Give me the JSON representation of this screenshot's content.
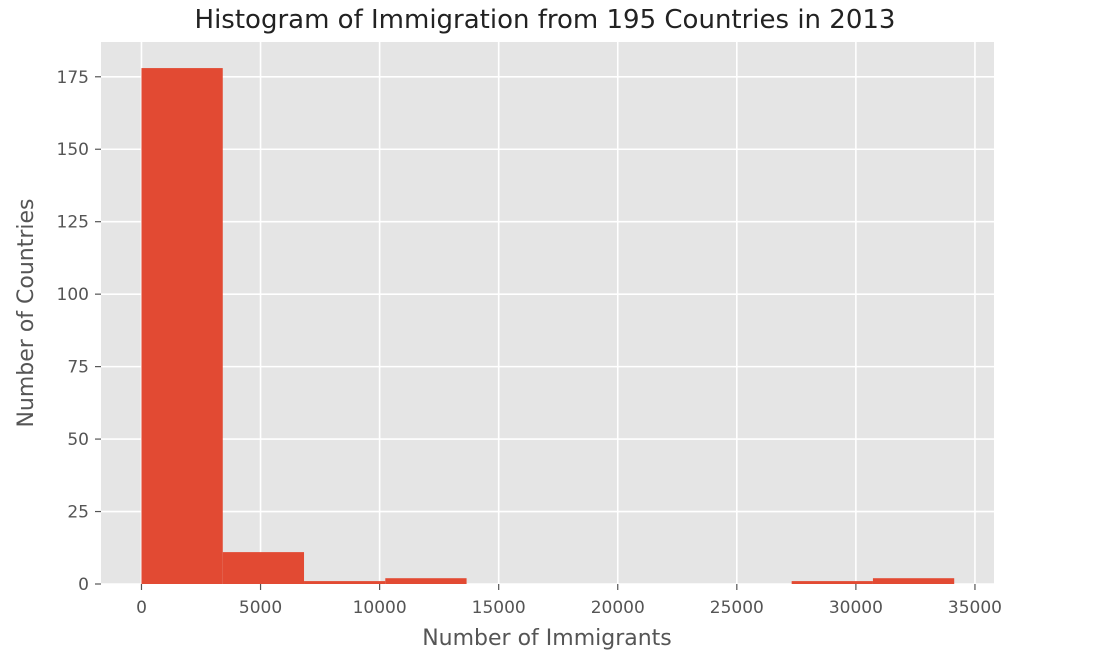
{
  "chart_data": {
    "type": "bar",
    "subtype": "histogram",
    "title": "Histogram of Immigration from 195 Countries in 2013",
    "xlabel": "Number of Immigrants",
    "ylabel": "Number of Countries",
    "xlim": [
      -1700,
      35800
    ],
    "ylim": [
      0,
      187
    ],
    "bin_edges": [
      0,
      3412.9,
      6825.8,
      10238.7,
      13651.6,
      17064.5,
      20477.4,
      23890.3,
      27303.2,
      30716.1,
      34129
    ],
    "values": [
      178,
      11,
      1,
      2,
      0,
      0,
      0,
      0,
      1,
      2
    ],
    "x_ticks": [
      0,
      5000,
      10000,
      15000,
      20000,
      25000,
      30000,
      35000
    ],
    "y_ticks": [
      0,
      25,
      50,
      75,
      100,
      125,
      150,
      175
    ],
    "grid": true,
    "legend": "none",
    "colors": {
      "bar": "#E24A33",
      "plot_background": "#E5E5E5",
      "grid": "#FFFFFF",
      "tick_text": "#555555",
      "title_text": "#222222"
    }
  }
}
